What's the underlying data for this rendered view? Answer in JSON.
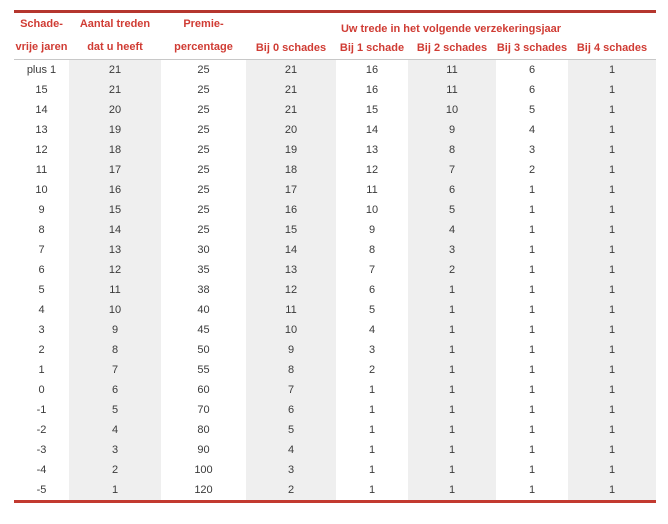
{
  "colors": {
    "rule_red": "#b5362e",
    "header_text_red": "#d03c34",
    "shade_gray": "#efefef",
    "body_text": "#3b3b3b",
    "header_separator_gray": "#c8c8c8"
  },
  "table": {
    "column_headers": [
      {
        "line1": "Schade-",
        "line2": "vrije jaren"
      },
      {
        "line1": "Aantal treden",
        "line2": "dat u heeft"
      },
      {
        "line1": "Premie-",
        "line2": "percentage"
      }
    ],
    "group_header": "Uw trede in het volgende verzekeringsjaar",
    "sub_headers": [
      "Bij 0 schades",
      "Bij 1 schade",
      "Bij 2 schades",
      "Bij 3 schades",
      "Bij 4 schades"
    ],
    "rows": [
      [
        "plus 1",
        "21",
        "25",
        "21",
        "16",
        "11",
        "6",
        "1"
      ],
      [
        "15",
        "21",
        "25",
        "21",
        "16",
        "11",
        "6",
        "1"
      ],
      [
        "14",
        "20",
        "25",
        "21",
        "15",
        "10",
        "5",
        "1"
      ],
      [
        "13",
        "19",
        "25",
        "20",
        "14",
        "9",
        "4",
        "1"
      ],
      [
        "12",
        "18",
        "25",
        "19",
        "13",
        "8",
        "3",
        "1"
      ],
      [
        "11",
        "17",
        "25",
        "18",
        "12",
        "7",
        "2",
        "1"
      ],
      [
        "10",
        "16",
        "25",
        "17",
        "11",
        "6",
        "1",
        "1"
      ],
      [
        "9",
        "15",
        "25",
        "16",
        "10",
        "5",
        "1",
        "1"
      ],
      [
        "8",
        "14",
        "25",
        "15",
        "9",
        "4",
        "1",
        "1"
      ],
      [
        "7",
        "13",
        "30",
        "14",
        "8",
        "3",
        "1",
        "1"
      ],
      [
        "6",
        "12",
        "35",
        "13",
        "7",
        "2",
        "1",
        "1"
      ],
      [
        "5",
        "11",
        "38",
        "12",
        "6",
        "1",
        "1",
        "1"
      ],
      [
        "4",
        "10",
        "40",
        "11",
        "5",
        "1",
        "1",
        "1"
      ],
      [
        "3",
        "9",
        "45",
        "10",
        "4",
        "1",
        "1",
        "1"
      ],
      [
        "2",
        "8",
        "50",
        "9",
        "3",
        "1",
        "1",
        "1"
      ],
      [
        "1",
        "7",
        "55",
        "8",
        "2",
        "1",
        "1",
        "1"
      ],
      [
        "0",
        "6",
        "60",
        "7",
        "1",
        "1",
        "1",
        "1"
      ],
      [
        "-1",
        "5",
        "70",
        "6",
        "1",
        "1",
        "1",
        "1"
      ],
      [
        "-2",
        "4",
        "80",
        "5",
        "1",
        "1",
        "1",
        "1"
      ],
      [
        "-3",
        "3",
        "90",
        "4",
        "1",
        "1",
        "1",
        "1"
      ],
      [
        "-4",
        "2",
        "100",
        "3",
        "1",
        "1",
        "1",
        "1"
      ],
      [
        "-5",
        "1",
        "120",
        "2",
        "1",
        "1",
        "1",
        "1"
      ]
    ]
  }
}
